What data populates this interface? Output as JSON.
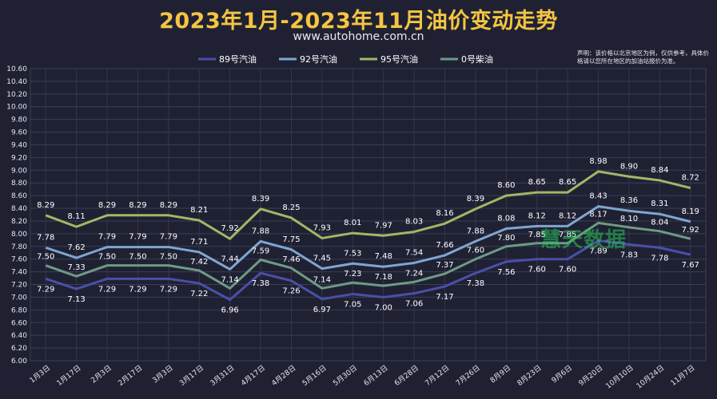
{
  "header": {
    "title": "2023年1月-2023年11月油价变动走势",
    "subtitle": "www.autohome.com.cn",
    "notice": "声明：该价格以北京地区为例，仅供参考，具体价格请以您所在地区的加油站报价为准。",
    "watermark": "慧天数据"
  },
  "chart_data": {
    "type": "line",
    "title": "2023年1月-2023年11月油价变动走势",
    "xlabel": "",
    "ylabel": "",
    "ylim": [
      6.0,
      10.6
    ],
    "grid": true,
    "legend_position": "top-center",
    "categories": [
      "1月3日",
      "1月17日",
      "2月3日",
      "2月17日",
      "3月3日",
      "3月17日",
      "3月31日",
      "4月17日",
      "4月28日",
      "5月16日",
      "5月30日",
      "6月13日",
      "6月28日",
      "7月12日",
      "7月26日",
      "8月9日",
      "8月23日",
      "9月6日",
      "9月20日",
      "10月10日",
      "10月24日",
      "11月7日"
    ],
    "y_ticks": [
      "6.00",
      "6.20",
      "6.40",
      "6.60",
      "6.80",
      "7.00",
      "7.20",
      "7.40",
      "7.60",
      "7.80",
      "8.00",
      "8.20",
      "8.40",
      "8.60",
      "8.80",
      "9.00",
      "9.20",
      "9.40",
      "9.60",
      "9.80",
      "10.00",
      "10.20",
      "10.40",
      "10.60"
    ],
    "series": [
      {
        "name": "89号汽油",
        "color": "#4a4fa8",
        "values": [
          7.29,
          7.13,
          7.29,
          7.29,
          7.29,
          7.22,
          6.96,
          7.38,
          7.26,
          6.97,
          7.05,
          7.0,
          7.06,
          7.17,
          7.38,
          7.56,
          7.6,
          7.6,
          7.89,
          7.83,
          7.78,
          7.67
        ]
      },
      {
        "name": "92号汽油",
        "color": "#7fa6cf",
        "values": [
          7.78,
          7.62,
          7.79,
          7.79,
          7.79,
          7.71,
          7.44,
          7.88,
          7.75,
          7.45,
          7.53,
          7.48,
          7.54,
          7.66,
          7.88,
          8.08,
          8.12,
          8.12,
          8.43,
          8.36,
          8.31,
          8.19
        ]
      },
      {
        "name": "95号汽油",
        "color": "#a4b665",
        "values": [
          8.29,
          8.11,
          8.29,
          8.29,
          8.29,
          8.21,
          7.92,
          8.39,
          8.25,
          7.93,
          8.01,
          7.97,
          8.03,
          8.16,
          8.39,
          8.6,
          8.65,
          8.65,
          8.98,
          8.9,
          8.84,
          8.72
        ]
      },
      {
        "name": "0号柴油",
        "color": "#6f9a84",
        "values": [
          7.5,
          7.33,
          7.5,
          7.5,
          7.5,
          7.42,
          7.14,
          7.59,
          7.46,
          7.14,
          7.23,
          7.18,
          7.24,
          7.37,
          7.6,
          7.8,
          7.85,
          7.85,
          8.17,
          8.1,
          8.04,
          7.92
        ]
      }
    ]
  }
}
